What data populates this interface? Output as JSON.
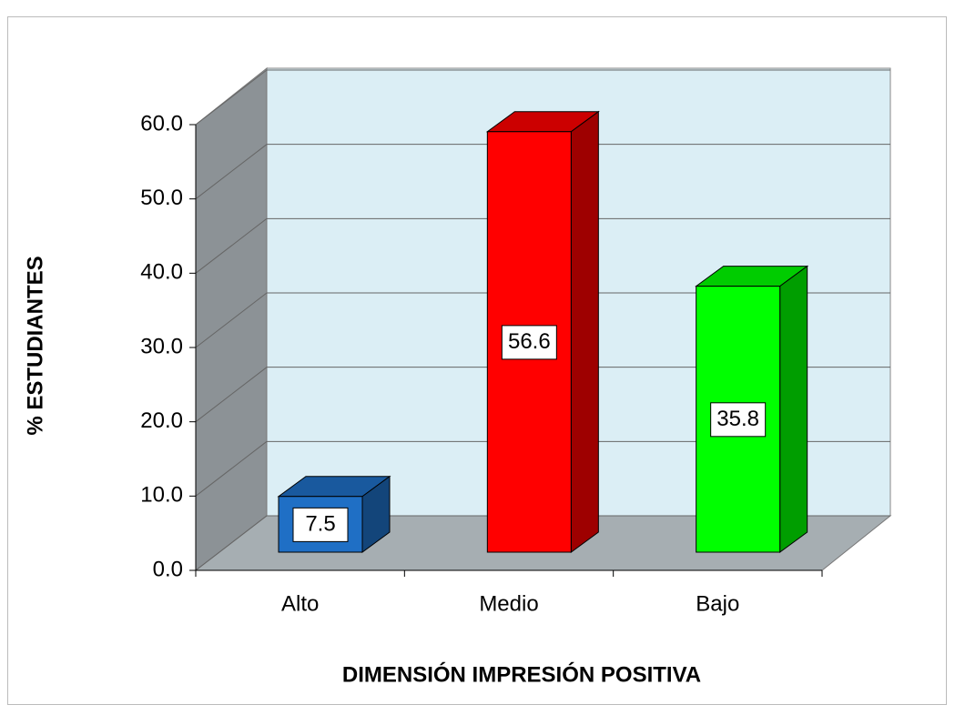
{
  "chart_data": {
    "type": "bar3d",
    "categories": [
      "Alto",
      "Medio",
      "Bajo"
    ],
    "values": [
      7.5,
      56.6,
      35.8
    ],
    "colors": [
      "#1f6fc5",
      "#ff0000",
      "#00ff00"
    ],
    "xlabel": "DIMENSIÓN IMPRESIÓN POSITIVA",
    "ylabel": "% ESTUDIANTES",
    "ylim": [
      0,
      60
    ],
    "yticks": [
      {
        "value": 0,
        "label": "0.0"
      },
      {
        "value": 10,
        "label": "10.0"
      },
      {
        "value": 20,
        "label": "20.0"
      },
      {
        "value": 30,
        "label": "30.0"
      },
      {
        "value": 40,
        "label": "40.0"
      },
      {
        "value": 50,
        "label": "50.0"
      },
      {
        "value": 60,
        "label": "60.0"
      }
    ],
    "grid": true
  }
}
